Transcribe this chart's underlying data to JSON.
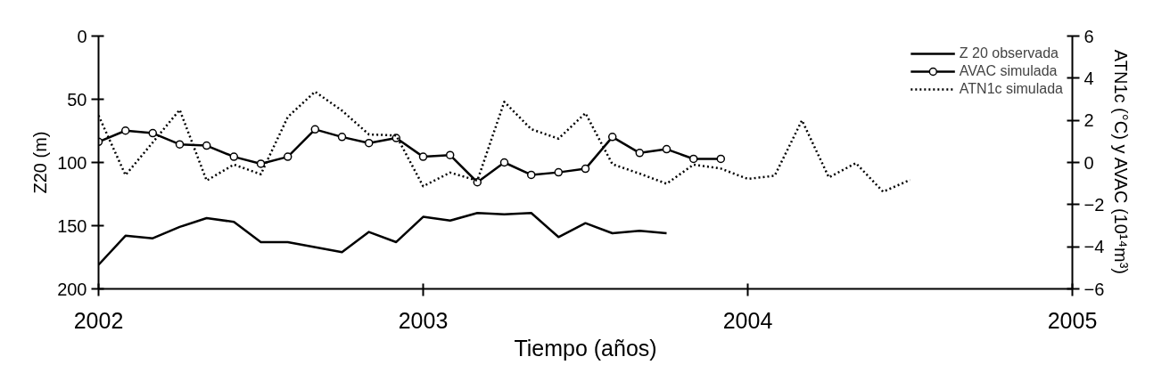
{
  "chart_data": {
    "type": "line",
    "xlabel": "Tiempo (años)",
    "ylabel": "Z20 (m)",
    "y2label": "ATN1c (°C) y AVAC (10¹⁴m³)",
    "xlim": [
      2002,
      2005
    ],
    "xticks": [
      2002,
      2003,
      2004,
      2005
    ],
    "ylim": [
      200,
      0
    ],
    "yticks": [
      0,
      50,
      100,
      150,
      200
    ],
    "y2lim": [
      -6,
      6
    ],
    "y2ticks": [
      -6,
      -4,
      -2,
      0,
      2,
      4,
      6
    ],
    "grid": false,
    "legend": "top right",
    "series": [
      {
        "name": "Z 20 observada",
        "color": "#000000",
        "marker": "none",
        "line_style": "solid",
        "x": [
          2002.0,
          2002.083,
          2002.167,
          2002.25,
          2002.333,
          2002.417,
          2002.5,
          2002.583,
          2002.75,
          2002.833,
          2002.917,
          2003.0,
          2003.083,
          2003.167,
          2003.25,
          2003.333,
          2003.417,
          2003.5,
          2003.583,
          2003.667,
          2003.75
        ],
        "values": [
          181,
          158,
          160,
          151,
          144,
          147,
          163,
          163,
          171,
          155,
          163,
          143,
          146,
          140,
          141,
          140,
          159,
          148,
          156,
          154,
          156
        ]
      },
      {
        "name": "AVAC simulada",
        "color": "#000000",
        "marker": "circle",
        "line_style": "solid",
        "axis": "y2",
        "x": [
          2002.0,
          2002.083,
          2002.167,
          2002.25,
          2002.333,
          2002.417,
          2002.5,
          2002.583,
          2002.667,
          2002.75,
          2002.833,
          2002.917,
          2003.0,
          2003.083,
          2003.167,
          2003.25,
          2003.333,
          2003.417,
          2003.5,
          2003.583,
          2003.667,
          2003.75,
          2003.833,
          2003.917
        ],
        "values": [
          0.98,
          1.51,
          1.39,
          0.86,
          0.8,
          0.27,
          -0.06,
          0.27,
          1.57,
          1.21,
          0.92,
          1.16,
          0.27,
          0.35,
          -0.94,
          0.0,
          -0.59,
          -0.47,
          -0.3,
          1.21,
          0.45,
          0.63,
          0.17,
          0.17
        ]
      },
      {
        "name": "ATN1c simulada",
        "color": "#000000",
        "marker": "none",
        "line_style": "dotted",
        "axis": "y2",
        "x": [
          2002.0,
          2002.083,
          2002.167,
          2002.25,
          2002.333,
          2002.417,
          2002.5,
          2002.583,
          2002.667,
          2002.75,
          2002.833,
          2002.917,
          2003.0,
          2003.083,
          2003.167,
          2003.25,
          2003.333,
          2003.417,
          2003.5,
          2003.583,
          2003.667,
          2003.75,
          2003.833,
          2003.917,
          2004.0,
          2004.083,
          2004.167,
          2004.25,
          2004.333,
          2004.417,
          2004.5
        ],
        "values": [
          2.23,
          -0.6,
          0.95,
          2.5,
          -0.86,
          -0.1,
          -0.56,
          2.16,
          3.36,
          2.46,
          1.33,
          1.28,
          -1.13,
          -0.48,
          -0.86,
          2.88,
          1.58,
          1.13,
          2.34,
          -0.08,
          -0.53,
          -1.01,
          -0.1,
          -0.29,
          -0.78,
          -0.63,
          2.0,
          -0.71,
          -0.03,
          -1.39,
          -0.83
        ]
      }
    ]
  }
}
